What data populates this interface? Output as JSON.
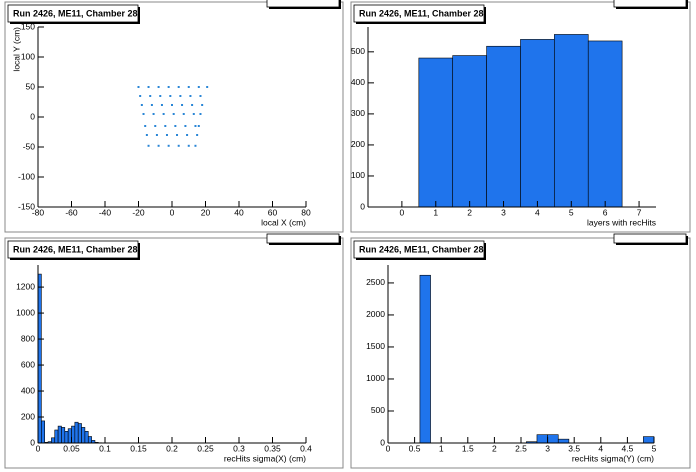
{
  "chart_data": [
    {
      "type": "scatter",
      "title": "Run 2426, ME11, Chamber 28",
      "x_label": "local X (cm)",
      "y_label": "local Y (cm)",
      "color": "#2a86d6",
      "x": [
        -20,
        -14,
        -8,
        -2,
        4,
        10,
        16,
        21,
        -19,
        -13,
        -7,
        -1,
        5,
        11,
        17,
        -18,
        -12,
        -6,
        0,
        6,
        12,
        18,
        -17,
        -11,
        -5,
        1,
        7,
        13,
        17,
        -16,
        -10,
        -4,
        2,
        8,
        14,
        16,
        -15,
        -9,
        -3,
        3,
        9,
        15,
        -14,
        -8,
        -2,
        4,
        10,
        14
      ],
      "values": [
        50,
        50,
        50,
        50,
        50,
        50,
        50,
        50,
        35,
        35,
        35,
        35,
        35,
        35,
        35,
        20,
        20,
        20,
        20,
        20,
        20,
        20,
        5,
        5,
        5,
        5,
        5,
        5,
        5,
        -15,
        -15,
        -15,
        -15,
        -15,
        -15,
        -15,
        -30,
        -30,
        -30,
        -30,
        -30,
        -30,
        -48,
        -48,
        -48,
        -48,
        -48,
        -48
      ],
      "xlim": [
        -80,
        80
      ],
      "xticks": [
        -80,
        -60,
        -40,
        -20,
        0,
        20,
        40,
        60,
        80
      ],
      "ylim": [
        -150,
        150
      ],
      "yticks": [
        -150,
        -100,
        -50,
        0,
        50,
        100,
        150
      ]
    },
    {
      "type": "histogram",
      "title": "Run 2426, ME11, Chamber 28",
      "x_label": "layers with recHits",
      "color": "#1f74ec",
      "bins": [
        0.5,
        1.5,
        2.5,
        3.5,
        4.5,
        5.5,
        6.5
      ],
      "values": [
        480,
        488,
        518,
        540,
        556,
        535
      ],
      "xlim": [
        -1,
        7.5
      ],
      "xticks": [
        0,
        1,
        2,
        3,
        4,
        5,
        6,
        7
      ],
      "ylim": [
        0,
        580
      ],
      "yticks": [
        0,
        100,
        200,
        300,
        400,
        500
      ]
    },
    {
      "type": "histogram",
      "title": "Run 2426, ME11, Chamber 28",
      "x_label": "recHits sigma(X) (cm)",
      "color": "#1f74ec",
      "bins": [
        0,
        0.005,
        0.01,
        0.015,
        0.02,
        0.025,
        0.03,
        0.035,
        0.04,
        0.045,
        0.05,
        0.055,
        0.06,
        0.065,
        0.07,
        0.075,
        0.08,
        0.085,
        0.09,
        0.095,
        0.1
      ],
      "values": [
        1300,
        170,
        5,
        10,
        40,
        100,
        130,
        120,
        90,
        110,
        130,
        160,
        150,
        120,
        90,
        50,
        20,
        5,
        2,
        0
      ],
      "xlim": [
        0,
        0.4
      ],
      "xticks": [
        0,
        0.05,
        0.1,
        0.15,
        0.2,
        0.25,
        0.3,
        0.35,
        0.4
      ],
      "ylim": [
        0,
        1370
      ],
      "yticks": [
        0,
        200,
        400,
        600,
        800,
        1000,
        1200
      ]
    },
    {
      "type": "histogram",
      "title": "Run 2426, ME11, Chamber 28",
      "x_label": "recHits sigma(Y) (cm)",
      "color": "#1f74ec",
      "bins": [
        0,
        0.2,
        0.4,
        0.6,
        0.8,
        1,
        1.2,
        1.4,
        1.6,
        1.8,
        2,
        2.2,
        2.4,
        2.6,
        2.8,
        3,
        3.2,
        3.4,
        3.6,
        3.8,
        4,
        4.2,
        4.4,
        4.6,
        4.8,
        5
      ],
      "values": [
        0,
        0,
        0,
        2620,
        0,
        0,
        0,
        0,
        0,
        0,
        0,
        0,
        0,
        20,
        130,
        130,
        60,
        0,
        0,
        0,
        0,
        0,
        0,
        0,
        100
      ],
      "xlim": [
        0,
        5
      ],
      "xticks": [
        0,
        0.5,
        1,
        1.5,
        2,
        2.5,
        3,
        3.5,
        4,
        4.5,
        5
      ],
      "ylim": [
        0,
        2780
      ],
      "yticks": [
        0,
        500,
        1000,
        1500,
        2000,
        2500
      ]
    }
  ]
}
